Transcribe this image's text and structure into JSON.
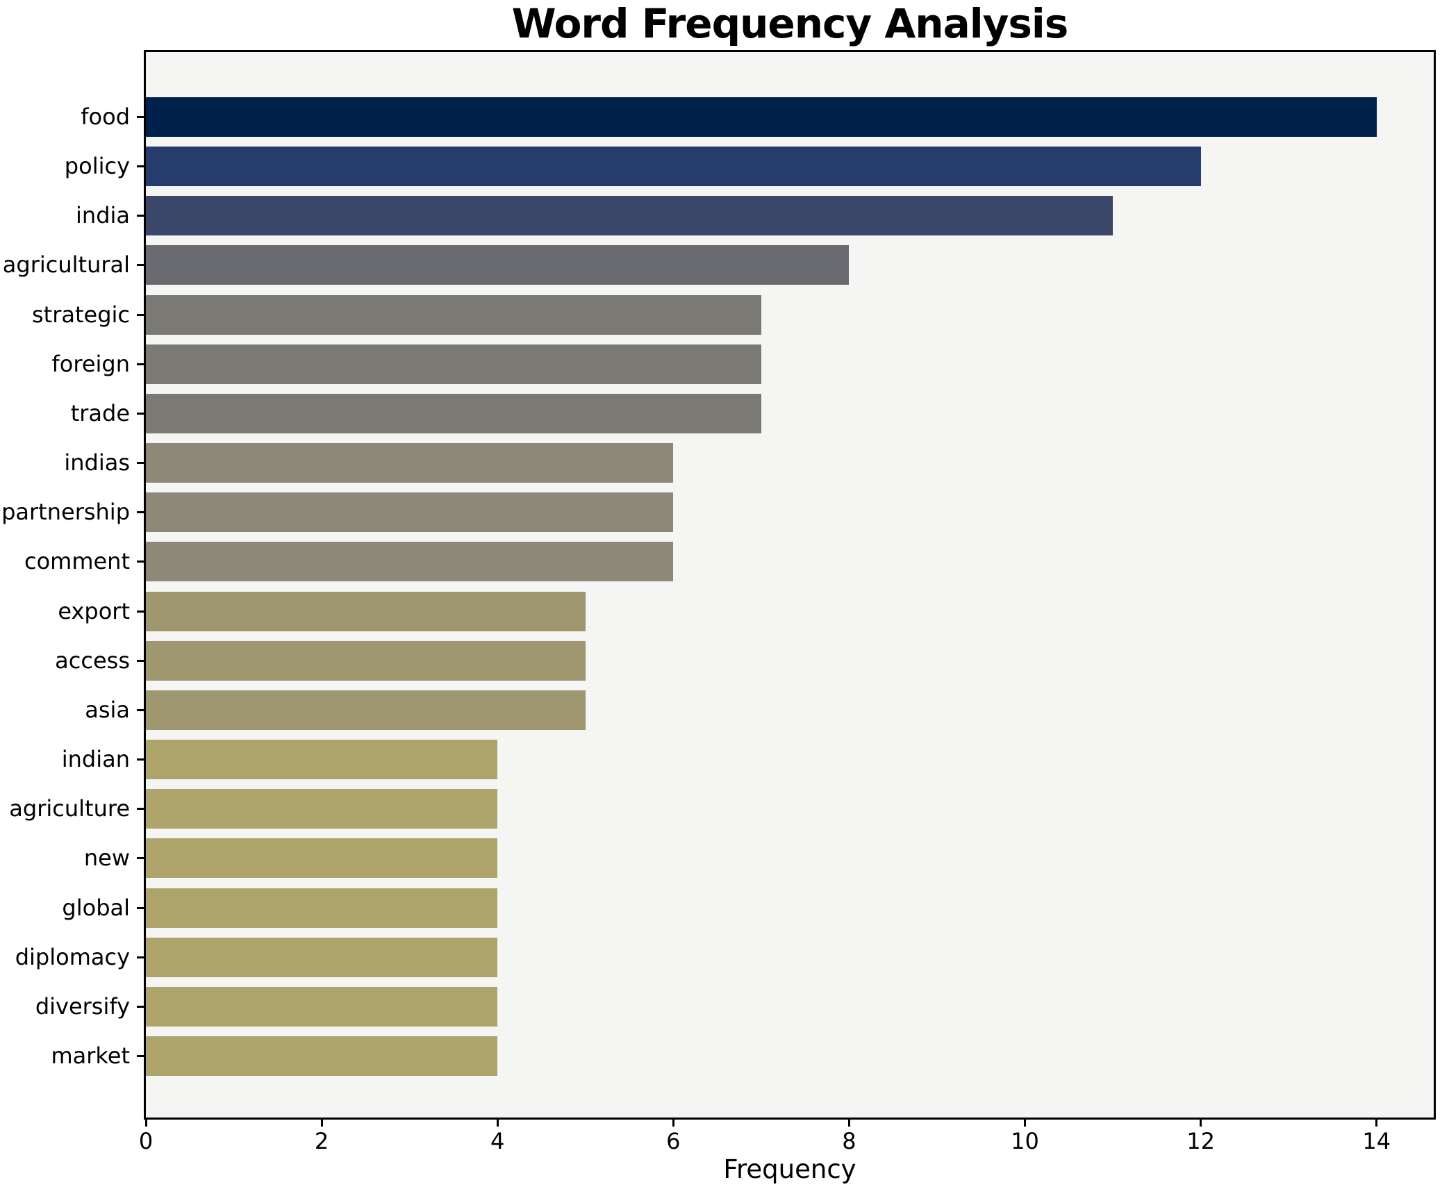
{
  "page": {
    "background": "#ffffff"
  },
  "chart_data": {
    "type": "bar",
    "orientation": "horizontal",
    "title": "Word Frequency Analysis",
    "xlabel": "Frequency",
    "ylabel": "",
    "categories": [
      "food",
      "policy",
      "india",
      "agricultural",
      "strategic",
      "foreign",
      "trade",
      "indias",
      "partnership",
      "comment",
      "export",
      "access",
      "asia",
      "indian",
      "agriculture",
      "new",
      "global",
      "diplomacy",
      "diversify",
      "market"
    ],
    "values": [
      14,
      12,
      11,
      8,
      7,
      7,
      7,
      6,
      6,
      6,
      5,
      5,
      5,
      4,
      4,
      4,
      4,
      4,
      4,
      4
    ],
    "bar_colors": [
      "#01214d",
      "#253c6d",
      "#3a476b",
      "#6a6b70",
      "#7b7974",
      "#7b7974",
      "#7b7974",
      "#8d8877",
      "#8d8877",
      "#8d8877",
      "#9e9770",
      "#9e9770",
      "#9e9770",
      "#aca46b",
      "#aca46b",
      "#aca46b",
      "#aca46b",
      "#aca46b",
      "#aca46b",
      "#aca46b"
    ],
    "xlim": [
      0,
      14.65
    ],
    "xticks": [
      0,
      2,
      4,
      6,
      8,
      10,
      12,
      14
    ],
    "grid": false,
    "legend": "none",
    "plot_background": "#f5f5f4",
    "axis_color": "#000000",
    "text_color": "#000000"
  }
}
